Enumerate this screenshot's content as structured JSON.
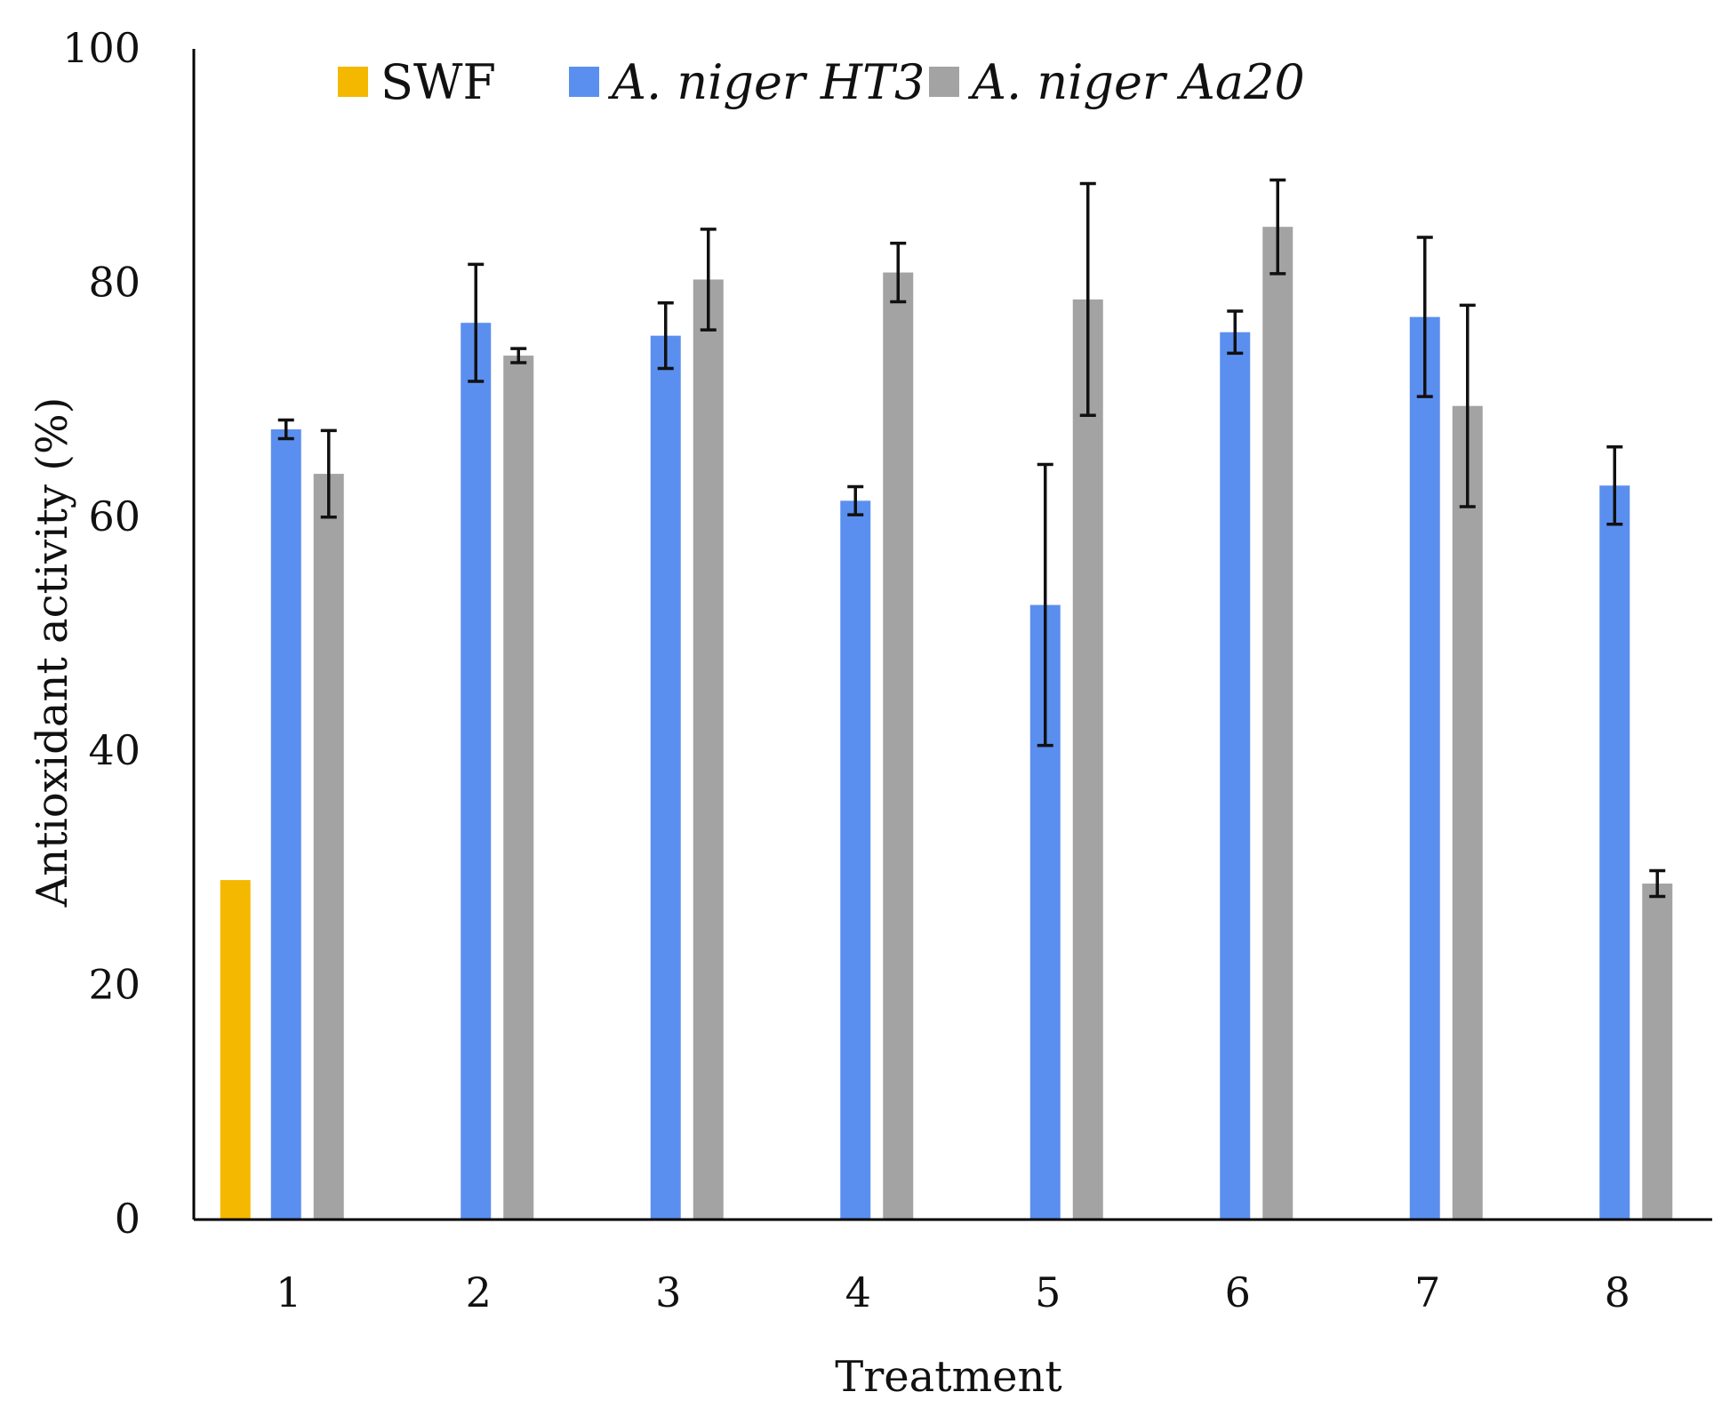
{
  "chart_data": {
    "type": "bar",
    "title": "",
    "xlabel": "Treatment",
    "ylabel": "Antioxidant activity (%)",
    "ylim": [
      0,
      100
    ],
    "yticks": [
      "0",
      "20",
      "40",
      "60",
      "80",
      "100"
    ],
    "categories": [
      "1",
      "2",
      "3",
      "4",
      "5",
      "6",
      "7",
      "8"
    ],
    "legend_position": "top",
    "series": [
      {
        "name": "SWF",
        "color": "#F5B800",
        "values": [
          29,
          null,
          null,
          null,
          null,
          null,
          null,
          null
        ],
        "errors": [
          null,
          null,
          null,
          null,
          null,
          null,
          null,
          null
        ]
      },
      {
        "name": "A. niger HT3",
        "color": "#5B8FEF",
        "values": [
          67.5,
          76.6,
          75.5,
          61.4,
          52.5,
          75.8,
          77.1,
          62.7
        ],
        "errors": [
          0.8,
          5.0,
          2.8,
          1.2,
          12.0,
          1.8,
          6.8,
          3.3
        ]
      },
      {
        "name": "A. niger Aa20",
        "color": "#A3A3A3",
        "values": [
          63.7,
          73.8,
          80.3,
          80.9,
          78.6,
          84.8,
          69.5,
          28.7
        ],
        "errors": [
          3.7,
          0.6,
          4.3,
          2.5,
          9.9,
          4.0,
          8.6,
          1.1
        ]
      }
    ]
  }
}
